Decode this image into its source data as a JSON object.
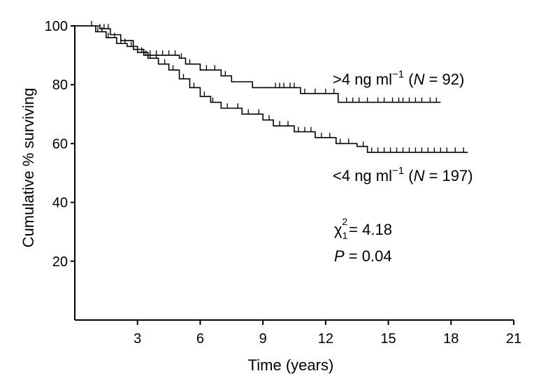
{
  "chart_data": {
    "type": "line",
    "subtype": "kaplan-meier step curve with censor ticks",
    "xlabel": "Time (years)",
    "ylabel": "Cumulative % surviving",
    "xlim": [
      0,
      21
    ],
    "ylim": [
      0,
      100
    ],
    "x_ticks": [
      3,
      6,
      9,
      12,
      15,
      18,
      21
    ],
    "y_ticks": [
      20,
      40,
      60,
      80,
      100
    ],
    "grid": false,
    "series": [
      {
        "name": ">4 ng ml⁻¹ (N = 92)",
        "label": {
          "prefix": ">4 ng ml",
          "sup": "−1",
          "open": " (",
          "n_italic": "N",
          "rest": " = 92)"
        },
        "steps": [
          [
            0,
            100
          ],
          [
            1.2,
            99
          ],
          [
            1.7,
            97
          ],
          [
            2.2,
            95
          ],
          [
            2.8,
            92
          ],
          [
            3.3,
            90
          ],
          [
            5.0,
            89
          ],
          [
            5.3,
            87
          ],
          [
            6.0,
            85
          ],
          [
            7.0,
            83
          ],
          [
            7.5,
            81
          ],
          [
            8.5,
            79
          ],
          [
            10.8,
            77
          ],
          [
            12.6,
            74
          ],
          [
            17.5,
            74
          ]
        ],
        "censor": [
          1.2,
          1.4,
          1.6,
          3.4,
          3.6,
          3.9,
          4.2,
          4.5,
          4.8,
          5.1,
          5.5,
          6.3,
          6.7,
          7.2,
          9.6,
          9.8,
          10.0,
          10.3,
          10.5,
          11.0,
          11.5,
          12.0,
          12.4,
          13.0,
          13.3,
          13.6,
          14.0,
          14.5,
          14.8,
          15.2,
          15.5,
          15.7,
          16.0,
          16.3,
          16.6,
          17.0,
          17.3
        ]
      },
      {
        "name": "<4 ng ml⁻¹ (N = 197)",
        "label": {
          "prefix": "<4 ng ml",
          "sup": "−1",
          "open": " (",
          "n_italic": "N",
          "rest": " = 197)"
        },
        "steps": [
          [
            0,
            100
          ],
          [
            1.0,
            98
          ],
          [
            1.5,
            96
          ],
          [
            2.0,
            94
          ],
          [
            2.5,
            93
          ],
          [
            3.0,
            91
          ],
          [
            3.5,
            89
          ],
          [
            4.0,
            87
          ],
          [
            4.5,
            85
          ],
          [
            5.0,
            82
          ],
          [
            5.5,
            79
          ],
          [
            6.0,
            76
          ],
          [
            6.5,
            74
          ],
          [
            7.0,
            72
          ],
          [
            8.0,
            70
          ],
          [
            9.0,
            68
          ],
          [
            9.5,
            66
          ],
          [
            10.5,
            64
          ],
          [
            11.5,
            62
          ],
          [
            12.5,
            60
          ],
          [
            13.5,
            59
          ],
          [
            14.0,
            57
          ],
          [
            18.8,
            57
          ]
        ],
        "censor": [
          0.8,
          1.1,
          1.3,
          1.6,
          1.9,
          2.2,
          2.4,
          2.7,
          3.2,
          3.6,
          3.9,
          4.3,
          4.7,
          5.2,
          5.7,
          6.2,
          6.6,
          7.3,
          7.8,
          8.3,
          8.8,
          9.3,
          9.8,
          10.2,
          10.7,
          11.0,
          11.3,
          11.8,
          12.2,
          12.7,
          13.1,
          13.8,
          14.2,
          14.5,
          14.8,
          15.1,
          15.4,
          15.7,
          16.0,
          16.3,
          16.6,
          16.9,
          17.2,
          17.5,
          17.8,
          18.2,
          18.6
        ]
      }
    ],
    "annotations": {
      "chi_symbol": "χ",
      "chi_sub": "1",
      "chi_sup": "2",
      "chi_value": "= 4.18",
      "p_symbol": "P",
      "p_value": " = 0.04"
    }
  }
}
